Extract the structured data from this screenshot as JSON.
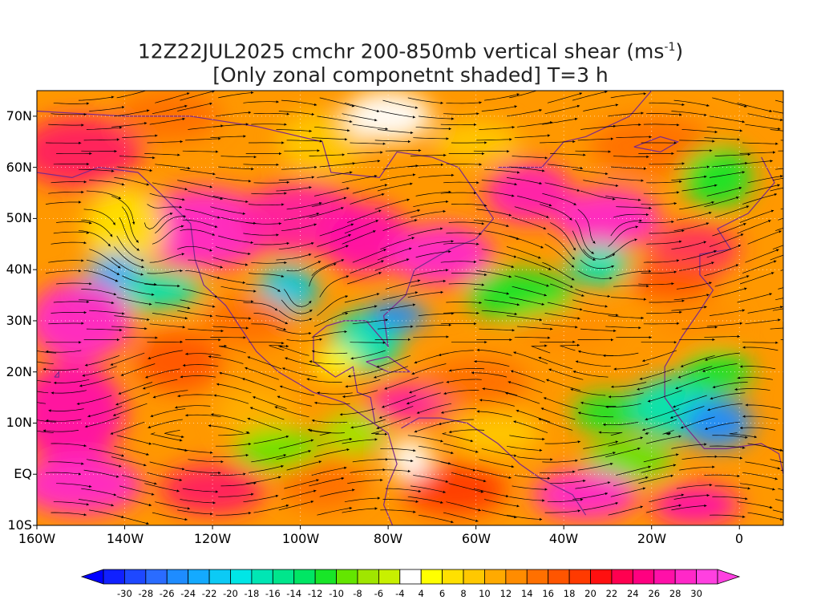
{
  "title": {
    "line1_prefix": "12Z22JUL2025 cmchr 200-850mb vertical shear (ms",
    "line1_sup": "-1",
    "line1_suffix": ")",
    "line2": "[Only zonal componetnt shaded] T=3 h"
  },
  "map": {
    "lat_labels": [
      "70N",
      "60N",
      "50N",
      "40N",
      "30N",
      "20N",
      "10N",
      "EQ",
      "10S"
    ],
    "lon_labels": [
      "160W",
      "140W",
      "120W",
      "100W",
      "80W",
      "60W",
      "40W",
      "20W",
      "0"
    ],
    "lat_range": [
      -10,
      75
    ],
    "lon_range": [
      -160,
      10
    ],
    "shading_field": "zonal vertical shear",
    "overlay": "streamlines",
    "coastline_color": "#7a2a8a"
  },
  "colorbar": {
    "levels": [
      "-30",
      "-28",
      "-26",
      "-24",
      "-22",
      "-20",
      "-18",
      "-16",
      "-14",
      "-12",
      "-10",
      "-8",
      "-6",
      "-4",
      "4",
      "6",
      "8",
      "10",
      "12",
      "14",
      "16",
      "18",
      "20",
      "22",
      "24",
      "26",
      "28",
      "30"
    ],
    "colors": [
      "#1020ff",
      "#1e48ff",
      "#2a6cff",
      "#1e8cff",
      "#14aaff",
      "#0ccaf5",
      "#00e6e6",
      "#00e6b4",
      "#00e68c",
      "#00e664",
      "#18e628",
      "#64e600",
      "#a0e600",
      "#c8f000",
      "#ffffff",
      "#ffff00",
      "#ffe000",
      "#ffc800",
      "#ffaa00",
      "#ff8c00",
      "#ff7000",
      "#ff5500",
      "#ff3a00",
      "#ff1010",
      "#ff0050",
      "#ff0080",
      "#ff10a8",
      "#ff28c8",
      "#ff40e0"
    ]
  }
}
